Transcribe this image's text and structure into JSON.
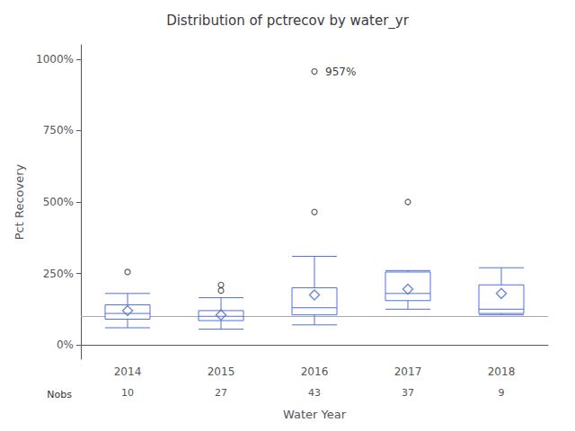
{
  "chart_data": {
    "type": "boxplot",
    "title": "Distribution of pctrecov by water_yr",
    "xlabel": "Water Year",
    "ylabel": "Pct Recovery",
    "categories": [
      "2014",
      "2015",
      "2016",
      "2017",
      "2018"
    ],
    "boxes": [
      {
        "low": 60,
        "q1": 90,
        "median": 110,
        "q3": 140,
        "high": 180
      },
      {
        "low": 55,
        "q1": 85,
        "median": 100,
        "q3": 120,
        "high": 165
      },
      {
        "low": 70,
        "q1": 105,
        "median": 130,
        "q3": 200,
        "high": 310
      },
      {
        "low": 125,
        "q1": 155,
        "median": 180,
        "q3": 255,
        "high": 260
      },
      {
        "low": 105,
        "q1": 110,
        "median": 125,
        "q3": 210,
        "high": 270
      }
    ],
    "means": [
      120,
      105,
      175,
      195,
      180
    ],
    "fliers": [
      [
        255
      ],
      [
        190,
        210
      ],
      [
        465,
        957
      ],
      [
        500
      ],
      []
    ],
    "nobs_label": "Nobs",
    "nobs": [
      10,
      27,
      43,
      37,
      9
    ],
    "reference_line": 100,
    "annotations": [
      {
        "text": "957%",
        "x": "2016",
        "y": 957
      }
    ],
    "ylim": [
      -50,
      1050
    ],
    "yticks": [
      {
        "value": 0,
        "label": "0%"
      },
      {
        "value": 250,
        "label": "250%"
      },
      {
        "value": 500,
        "label": "500%"
      },
      {
        "value": 750,
        "label": "750%"
      },
      {
        "value": 1000,
        "label": "1000%"
      }
    ],
    "grid": false
  }
}
